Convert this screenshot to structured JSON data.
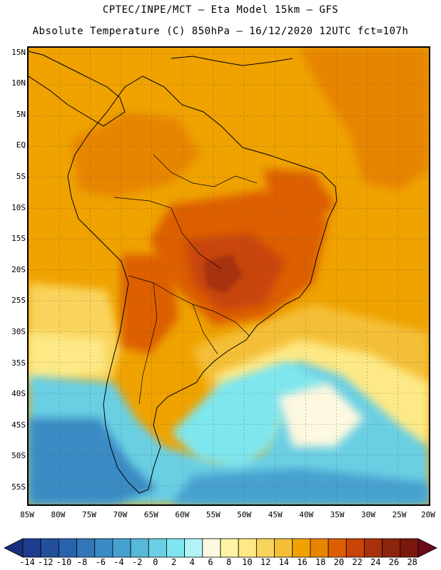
{
  "title": {
    "line1": "CPTEC/INPE/MCT –  Eta Model 15km – GFS",
    "line2": "Absolute Temperature (C) 850hPa – 16/12/2020 12UTC fct=107h"
  },
  "map": {
    "lat_labels": [
      "15N",
      "10N",
      "5N",
      "EQ",
      "5S",
      "10S",
      "15S",
      "20S",
      "25S",
      "30S",
      "35S",
      "40S",
      "45S",
      "50S",
      "55S"
    ],
    "lon_labels": [
      "85W",
      "80W",
      "75W",
      "70W",
      "65W",
      "60W",
      "55W",
      "50W",
      "45W",
      "40W",
      "35W",
      "30W",
      "25W",
      "20W"
    ],
    "grid": "dotted",
    "extent": {
      "lon": [
        -85,
        -20
      ],
      "lat": [
        -58,
        16
      ]
    }
  },
  "colorbar": {
    "labels": [
      "-14",
      "-12",
      "-10",
      "-8",
      "-6",
      "-4",
      "-2",
      "0",
      "2",
      "4",
      "6",
      "8",
      "10",
      "12",
      "14",
      "16",
      "18",
      "20",
      "22",
      "24",
      "26",
      "28"
    ],
    "colors": [
      "#1d3e8f",
      "#22509c",
      "#2a63ad",
      "#3277b9",
      "#3a8bc4",
      "#47a1cf",
      "#58b8d9",
      "#6bcfe3",
      "#7ee6ee",
      "#b3f3f8",
      "#fdf8e0",
      "#fff3a6",
      "#fde985",
      "#f9d45c",
      "#f4bf37",
      "#efa200",
      "#e78400",
      "#dd5e00",
      "#c84407",
      "#a8310b",
      "#8b250e",
      "#7a180b"
    ],
    "under_color": "#1a2f7a",
    "over_color": "#6b0a1a"
  }
}
